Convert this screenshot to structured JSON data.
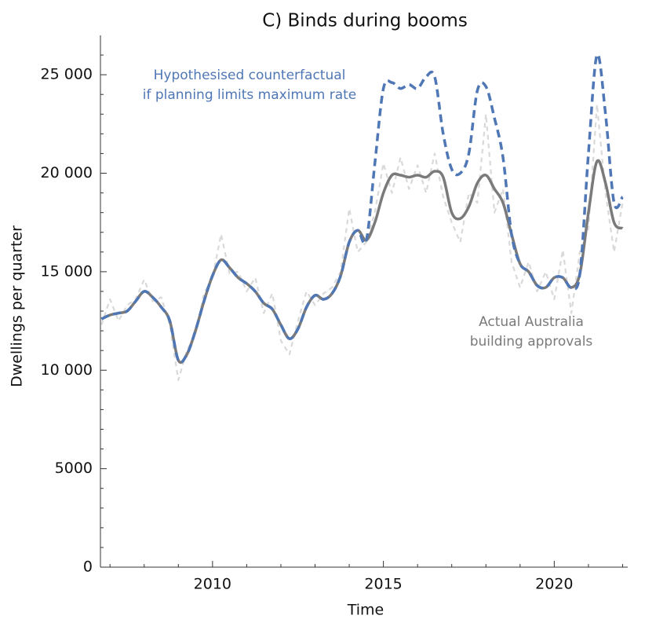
{
  "chart_data": {
    "type": "line",
    "title": "C) Binds during booms",
    "xlabel": "Time",
    "ylabel": "Dwellings per quarter",
    "x": [
      2006.75,
      2007,
      2007.25,
      2007.5,
      2007.75,
      2008,
      2008.25,
      2008.5,
      2008.75,
      2009,
      2009.25,
      2009.5,
      2009.75,
      2010,
      2010.25,
      2010.5,
      2010.75,
      2011,
      2011.25,
      2011.5,
      2011.75,
      2012,
      2012.25,
      2012.5,
      2012.75,
      2013,
      2013.25,
      2013.5,
      2013.75,
      2014,
      2014.25,
      2014.5,
      2014.75,
      2015,
      2015.25,
      2015.5,
      2015.75,
      2016,
      2016.25,
      2016.5,
      2016.75,
      2017,
      2017.25,
      2017.5,
      2017.75,
      2018,
      2018.25,
      2018.5,
      2018.75,
      2019,
      2019.25,
      2019.5,
      2019.75,
      2020,
      2020.25,
      2020.5,
      2020.75,
      2021,
      2021.25,
      2021.5,
      2021.75,
      2022
    ],
    "series": [
      {
        "color": "#d9d9d9",
        "dash": "6 5",
        "width": 2.2,
        "values": [
          12300,
          13600,
          12500,
          13300,
          13600,
          14600,
          13500,
          13700,
          12300,
          9500,
          11000,
          11800,
          13900,
          14700,
          16900,
          14900,
          15000,
          14000,
          14700,
          12900,
          13900,
          11500,
          10800,
          12500,
          14000,
          13300,
          13900,
          14200,
          15000,
          18200,
          16000,
          16500,
          18000,
          20500,
          19000,
          20800,
          19200,
          20400,
          19000,
          21000,
          18800,
          17500,
          16500,
          19000,
          18500,
          23000,
          18000,
          19200,
          15500,
          14200,
          15500,
          14000,
          15000,
          13600,
          16100,
          12900,
          16000,
          17200,
          23500,
          19000,
          16000,
          18500
        ]
      },
      {
        "color": "#7a7a7a",
        "dash": "none",
        "width": 3.5,
        "values": [
          12600,
          12800,
          12900,
          13000,
          13500,
          14000,
          13700,
          13200,
          12500,
          10500,
          10800,
          12000,
          13500,
          14800,
          15600,
          15200,
          14700,
          14400,
          14000,
          13400,
          13100,
          12300,
          11600,
          12100,
          13200,
          13800,
          13600,
          13900,
          14800,
          16500,
          17100,
          16600,
          17500,
          19000,
          19900,
          19900,
          19800,
          19900,
          19800,
          20100,
          19800,
          18000,
          17700,
          18300,
          19500,
          19900,
          19200,
          18500,
          16900,
          15400,
          15000,
          14300,
          14200,
          14700,
          14700,
          14200,
          14900,
          18000,
          20600,
          19500,
          17500,
          17200
        ]
      },
      {
        "color": "#4f77b5",
        "dash": "10 6",
        "width": 3.5,
        "values": [
          12600,
          12800,
          12900,
          13000,
          13500,
          14000,
          13700,
          13200,
          12500,
          10500,
          10800,
          12000,
          13500,
          14800,
          15600,
          15200,
          14700,
          14400,
          14000,
          13400,
          13100,
          12300,
          11600,
          12100,
          13200,
          13800,
          13600,
          13900,
          14800,
          16500,
          17100,
          16600,
          20500,
          24300,
          24600,
          24300,
          24500,
          24300,
          24900,
          24900,
          22000,
          20200,
          20000,
          21000,
          24200,
          24400,
          22800,
          20800,
          16900,
          15400,
          15000,
          14300,
          14200,
          14700,
          14700,
          14200,
          14900,
          21000,
          26000,
          23000,
          18500,
          18800
        ]
      }
    ],
    "annotations": [
      {
        "lines": [
          "Hypothesised counterfactual",
          "if planning limits maximum rate"
        ],
        "color": "#4f77b5"
      },
      {
        "lines": [
          "Actual Australia",
          "building approvals"
        ],
        "color": "#7a7a7a"
      }
    ],
    "xlim": [
      2006.72,
      2022.15
    ],
    "ylim": [
      0,
      27000
    ],
    "xticks": [
      2010,
      2015,
      2020
    ],
    "xticks_minor": [
      2007,
      2008,
      2009,
      2011,
      2012,
      2013,
      2014,
      2016,
      2017,
      2018,
      2019,
      2021,
      2022
    ],
    "yticks": [
      0,
      5000,
      {
        "value": 10000,
        "label": "10 000"
      },
      {
        "value": 15000,
        "label": "15 000"
      },
      {
        "value": 20000,
        "label": "20 000"
      },
      {
        "value": 25000,
        "label": "25 000"
      }
    ],
    "yticks_minor": [
      1000,
      2000,
      3000,
      4000,
      6000,
      7000,
      8000,
      9000,
      11000,
      12000,
      13000,
      14000,
      16000,
      17000,
      18000,
      19000,
      21000,
      22000,
      23000,
      24000,
      26000
    ]
  }
}
